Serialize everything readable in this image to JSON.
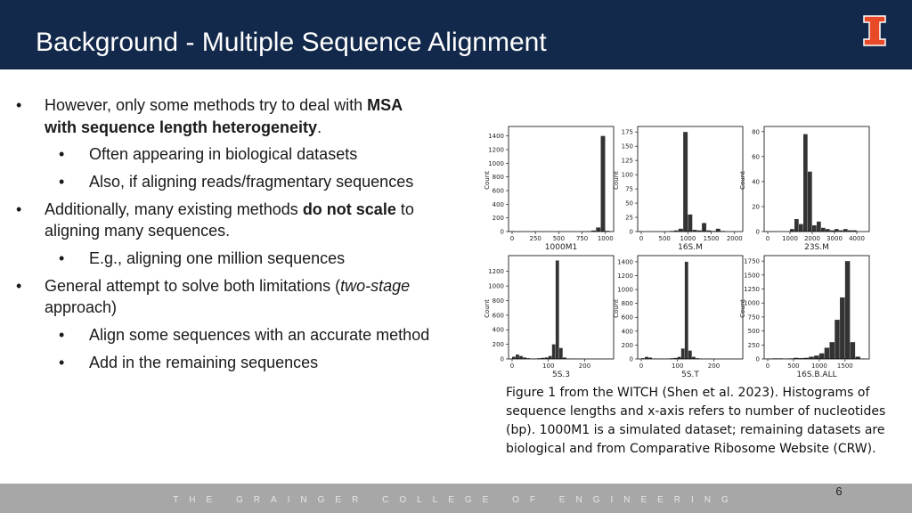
{
  "header": {
    "title": "Background - Multiple Sequence Alignment"
  },
  "marker": "•",
  "bullets": [
    {
      "level": 1,
      "lines": [
        [
          {
            "text": "However, only some methods try to deal with ",
            "style": "normal"
          },
          {
            "text": "MSA",
            "style": "bold"
          }
        ],
        [
          {
            "text": "with sequence length heterogeneity",
            "style": "bold"
          },
          {
            "text": ".",
            "style": "normal"
          }
        ]
      ]
    },
    {
      "level": 2,
      "lines": [
        [
          {
            "text": "Often appearing in biological datasets",
            "style": "normal"
          }
        ]
      ]
    },
    {
      "level": 2,
      "lines": [
        [
          {
            "text": "Also, if aligning reads/fragmentary sequences",
            "style": "normal"
          }
        ]
      ]
    },
    {
      "level": 1,
      "lines": [
        [
          {
            "text": "Additionally, many existing methods ",
            "style": "normal"
          },
          {
            "text": "do not scale",
            "style": "bold"
          },
          {
            "text": " to",
            "style": "normal"
          }
        ],
        [
          {
            "text": "aligning many sequences.",
            "style": "normal"
          }
        ]
      ]
    },
    {
      "level": 2,
      "lines": [
        [
          {
            "text": "E.g., aligning one million sequences",
            "style": "normal"
          }
        ]
      ]
    },
    {
      "level": 1,
      "lines": [
        [
          {
            "text": "General attempt to solve both limitations (",
            "style": "normal"
          },
          {
            "text": "two-stage",
            "style": "italic"
          }
        ],
        [
          {
            "text": "approach)",
            "style": "normal"
          }
        ]
      ]
    },
    {
      "level": 2,
      "lines": [
        [
          {
            "text": "Align some sequences with an accurate method",
            "style": "normal"
          }
        ]
      ]
    },
    {
      "level": 2,
      "lines": [
        [
          {
            "text": "Add in the remaining sequences",
            "style": "normal"
          }
        ]
      ]
    }
  ],
  "chart_data": [
    {
      "type": "histogram",
      "xlabel": "1000M1",
      "ylabel": "Count",
      "color": "#333333",
      "bins": [
        0,
        50,
        100,
        150,
        200,
        250,
        300,
        350,
        400,
        450,
        500,
        550,
        600,
        650,
        700,
        750,
        800,
        850,
        900,
        950,
        1000,
        1050
      ],
      "counts": [
        0,
        0,
        0,
        0,
        0,
        0,
        0,
        0,
        0,
        0,
        0,
        0,
        0,
        0,
        0,
        2,
        5,
        15,
        60,
        1400,
        10
      ],
      "xlim": [
        0,
        1050
      ],
      "xticks": [
        0,
        250,
        500,
        750,
        1000
      ],
      "ylim": [
        0,
        1500
      ],
      "yticks": [
        0,
        200,
        400,
        600,
        800,
        1000,
        1200,
        1400
      ]
    },
    {
      "type": "histogram",
      "xlabel": "16S.M",
      "ylabel": "Count",
      "color": "#333333",
      "bins": [
        0,
        100,
        200,
        300,
        400,
        500,
        600,
        700,
        800,
        900,
        1000,
        1100,
        1200,
        1300,
        1400,
        1500,
        1600,
        1700,
        1800,
        1900,
        2000,
        2100
      ],
      "counts": [
        0,
        0,
        0,
        0,
        0,
        0,
        1,
        2,
        5,
        175,
        30,
        3,
        2,
        15,
        2,
        1,
        5,
        1,
        0,
        0,
        0
      ],
      "xlim": [
        0,
        2100
      ],
      "xticks": [
        0,
        500,
        1000,
        1500,
        2000
      ],
      "ylim": [
        0,
        180
      ],
      "yticks": [
        0,
        25,
        50,
        75,
        100,
        125,
        150,
        175
      ]
    },
    {
      "type": "histogram",
      "xlabel": "23S.M",
      "ylabel": "Count",
      "color": "#333333",
      "bins": [
        0,
        200,
        400,
        600,
        800,
        1000,
        1200,
        1400,
        1600,
        1800,
        2000,
        2200,
        2400,
        2600,
        2800,
        3000,
        3200,
        3400,
        3600,
        3800,
        4000,
        4200,
        4400
      ],
      "counts": [
        0,
        0,
        0,
        0,
        0,
        2,
        10,
        6,
        78,
        48,
        5,
        8,
        3,
        2,
        1,
        2,
        1,
        2,
        1,
        1,
        0,
        0
      ],
      "xlim": [
        0,
        4400
      ],
      "xticks": [
        0,
        1000,
        2000,
        3000,
        4000
      ],
      "ylim": [
        0,
        82
      ],
      "yticks": [
        0,
        20,
        40,
        60,
        80
      ]
    },
    {
      "type": "histogram",
      "xlabel": "5S.3",
      "ylabel": "Count",
      "color": "#333333",
      "bins": [
        0,
        10,
        20,
        30,
        40,
        50,
        60,
        70,
        80,
        90,
        100,
        110,
        120,
        130,
        140,
        150,
        160,
        170,
        180,
        190,
        200,
        210,
        220,
        230,
        240,
        250,
        260,
        270
      ],
      "counts": [
        30,
        60,
        40,
        20,
        10,
        5,
        5,
        10,
        15,
        20,
        40,
        200,
        1350,
        150,
        20,
        5,
        3,
        2,
        1,
        1,
        0,
        0,
        0,
        0,
        0,
        0,
        0
      ],
      "xlim": [
        0,
        270
      ],
      "xticks": [
        0,
        100,
        200
      ],
      "ylim": [
        0,
        1380
      ],
      "yticks": [
        0,
        200,
        400,
        600,
        800,
        1000,
        1200
      ]
    },
    {
      "type": "histogram",
      "xlabel": "5S.T",
      "ylabel": "Count",
      "color": "#333333",
      "bins": [
        0,
        10,
        20,
        30,
        40,
        50,
        60,
        70,
        80,
        90,
        100,
        110,
        120,
        130,
        140,
        150,
        160,
        170,
        180,
        190,
        200,
        210,
        220,
        230,
        240,
        250,
        260,
        270
      ],
      "counts": [
        10,
        30,
        20,
        5,
        5,
        3,
        3,
        5,
        10,
        15,
        30,
        150,
        1400,
        120,
        30,
        10,
        5,
        2,
        1,
        1,
        0,
        0,
        0,
        0,
        0,
        0,
        0
      ],
      "xlim": [
        0,
        270
      ],
      "xticks": [
        0,
        100,
        200
      ],
      "ylim": [
        0,
        1450
      ],
      "yticks": [
        0,
        200,
        400,
        600,
        800,
        1000,
        1200,
        1400
      ]
    },
    {
      "type": "histogram",
      "xlabel": "16S.B.ALL",
      "ylabel": "Count",
      "color": "#333333",
      "bins": [
        0,
        100,
        200,
        300,
        400,
        500,
        600,
        700,
        800,
        900,
        1000,
        1100,
        1200,
        1300,
        1400,
        1500,
        1600,
        1700,
        1800,
        1900
      ],
      "counts": [
        5,
        10,
        10,
        5,
        10,
        20,
        15,
        20,
        40,
        60,
        100,
        200,
        300,
        700,
        1100,
        1750,
        300,
        40,
        5
      ],
      "xlim": [
        0,
        1900
      ],
      "xticks": [
        0,
        500,
        1000,
        1500
      ],
      "ylim": [
        0,
        1800
      ],
      "yticks": [
        0,
        250,
        500,
        750,
        1000,
        1250,
        1500,
        1750
      ]
    }
  ],
  "caption": [
    "Figure 1 from the WITCH (Shen et al. 2023). Histograms of",
    "sequence lengths and x-axis refers to number of nucleotides",
    "(bp). 1000M1 is a simulated dataset; remaining datasets are",
    "biological and from Comparative Ribosome Website (CRW)."
  ],
  "footer": {
    "college": "THE GRAINGER COLLEGE OF ENGINEERING",
    "page": "6"
  }
}
